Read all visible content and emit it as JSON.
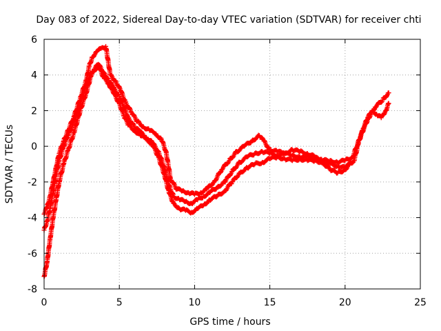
{
  "chart_data": {
    "type": "scatter",
    "title": "Day 083 of 2022, Sidereal Day-to-day VTEC variation (SDTVAR) for receiver chti",
    "xlabel": "GPS time / hours",
    "ylabel": "SDTVAR / TECUs",
    "xlim": [
      0,
      25
    ],
    "ylim": [
      -8,
      6
    ],
    "xticks": [
      0,
      5,
      10,
      15,
      20,
      25
    ],
    "yticks": [
      -8,
      -6,
      -4,
      -2,
      0,
      2,
      4,
      6
    ],
    "grid": true,
    "marker": "plus",
    "series": [
      {
        "name": "trace-1",
        "color": "#ff0000",
        "x": [
          0,
          0.2,
          0.4,
          0.6,
          0.8,
          1.0,
          1.3,
          1.6,
          2.0,
          2.4,
          2.8,
          3.1,
          3.3,
          3.6,
          4.0,
          4.3,
          4.6,
          5.0,
          5.3,
          5.6,
          6.0,
          6.4,
          6.8,
          7.2,
          7.6,
          8.0,
          8.3,
          8.6,
          9.0,
          9.4,
          9.8,
          10.2,
          10.6,
          11.0,
          11.5,
          12.0,
          12.5,
          13.0,
          13.5,
          14.0,
          14.5,
          15.0,
          15.5,
          16.0,
          16.5,
          17.0,
          17.5,
          18.0,
          18.5,
          19.0,
          19.5,
          20.0,
          20.3,
          20.6,
          20.9,
          21.2,
          21.5,
          21.8,
          22.1,
          22.4,
          22.7,
          22.9
        ],
        "y": [
          -7.3,
          -6.5,
          -5.2,
          -4.0,
          -3.0,
          -2.0,
          -1.0,
          -0.2,
          0.8,
          2.0,
          3.0,
          3.9,
          4.2,
          4.5,
          3.8,
          3.5,
          3.0,
          2.4,
          1.7,
          1.2,
          0.9,
          0.6,
          0.4,
          0.1,
          -0.6,
          -1.6,
          -2.6,
          -3.2,
          -3.5,
          -3.6,
          -3.7,
          -3.5,
          -3.3,
          -3.0,
          -2.8,
          -2.5,
          -2.0,
          -1.5,
          -1.2,
          -1.0,
          -0.9,
          -0.7,
          -0.6,
          -0.7,
          -0.8,
          -0.7,
          -0.8,
          -0.8,
          -0.9,
          -1.0,
          -1.1,
          -1.2,
          -1.0,
          -0.8,
          0.2,
          1.0,
          1.6,
          2.0,
          1.8,
          1.6,
          2.0,
          2.4
        ]
      },
      {
        "name": "trace-2",
        "color": "#ff0000",
        "x": [
          0,
          0.2,
          0.4,
          0.6,
          0.8,
          1.0,
          1.3,
          1.6,
          2.0,
          2.4,
          2.8,
          3.2,
          3.6,
          4.0,
          4.3,
          4.6,
          5.0,
          5.3,
          5.6,
          6.0,
          6.4,
          6.8,
          7.2,
          7.6,
          8.0,
          8.3,
          8.6,
          9.0,
          9.4,
          9.8,
          10.2,
          10.6,
          11.0,
          11.5,
          12.0,
          12.5,
          13.0,
          13.5,
          14.0,
          14.5,
          15.0,
          15.5,
          16.0,
          16.5,
          17.0,
          17.5,
          18.0,
          18.5,
          19.0,
          19.5,
          20.0,
          20.5,
          21.0,
          21.5,
          22.0,
          22.5,
          22.9
        ],
        "y": [
          -4.7,
          -4.2,
          -3.5,
          -2.6,
          -1.6,
          -0.8,
          0.0,
          0.6,
          1.4,
          2.4,
          3.4,
          4.2,
          4.6,
          4.1,
          3.7,
          3.3,
          2.8,
          2.2,
          1.6,
          1.1,
          0.8,
          0.5,
          0.2,
          -0.3,
          -1.2,
          -2.2,
          -2.8,
          -3.0,
          -3.1,
          -3.2,
          -3.0,
          -2.8,
          -2.6,
          -2.3,
          -2.0,
          -1.4,
          -0.9,
          -0.6,
          -0.4,
          -0.3,
          -0.4,
          -0.5,
          -0.4,
          -0.5,
          -0.6,
          -0.6,
          -0.7,
          -0.8,
          -0.8,
          -0.9,
          -0.8,
          -0.6,
          0.5,
          1.5,
          2.2,
          2.6,
          3.0
        ]
      },
      {
        "name": "trace-3",
        "color": "#ff0000",
        "x": [
          0,
          0.2,
          0.4,
          0.6,
          0.8,
          1.0,
          1.3,
          1.6,
          2.0,
          2.4,
          2.8,
          3.0,
          3.2,
          3.5,
          3.8,
          4.1,
          4.4,
          4.8,
          5.1,
          5.4,
          5.8,
          6.2,
          6.6,
          7.0,
          7.4,
          7.8,
          8.1,
          8.4,
          8.8,
          9.2,
          9.6,
          10.0,
          10.4,
          10.8,
          11.3,
          11.8,
          12.3,
          12.8,
          13.3,
          13.8,
          14.3,
          14.6,
          15.0,
          15.5,
          16.0,
          16.5,
          17.0,
          17.5,
          18.0,
          18.5,
          19.0,
          19.5,
          20.0,
          20.3
        ],
        "y": [
          -3.8,
          -3.4,
          -2.8,
          -2.0,
          -1.2,
          -0.4,
          0.3,
          0.9,
          1.7,
          2.7,
          3.7,
          4.5,
          5.0,
          5.3,
          5.5,
          5.6,
          4.0,
          3.6,
          3.1,
          2.5,
          1.9,
          1.4,
          1.1,
          0.9,
          0.7,
          0.4,
          -0.3,
          -1.8,
          -2.4,
          -2.5,
          -2.6,
          -2.7,
          -2.6,
          -2.4,
          -2.0,
          -1.3,
          -0.8,
          -0.3,
          0.0,
          0.3,
          0.6,
          0.3,
          -0.2,
          -0.3,
          -0.4,
          -0.2,
          -0.3,
          -0.4,
          -0.6,
          -0.9,
          -1.3,
          -1.5,
          -1.3,
          -1.0
        ]
      }
    ]
  }
}
